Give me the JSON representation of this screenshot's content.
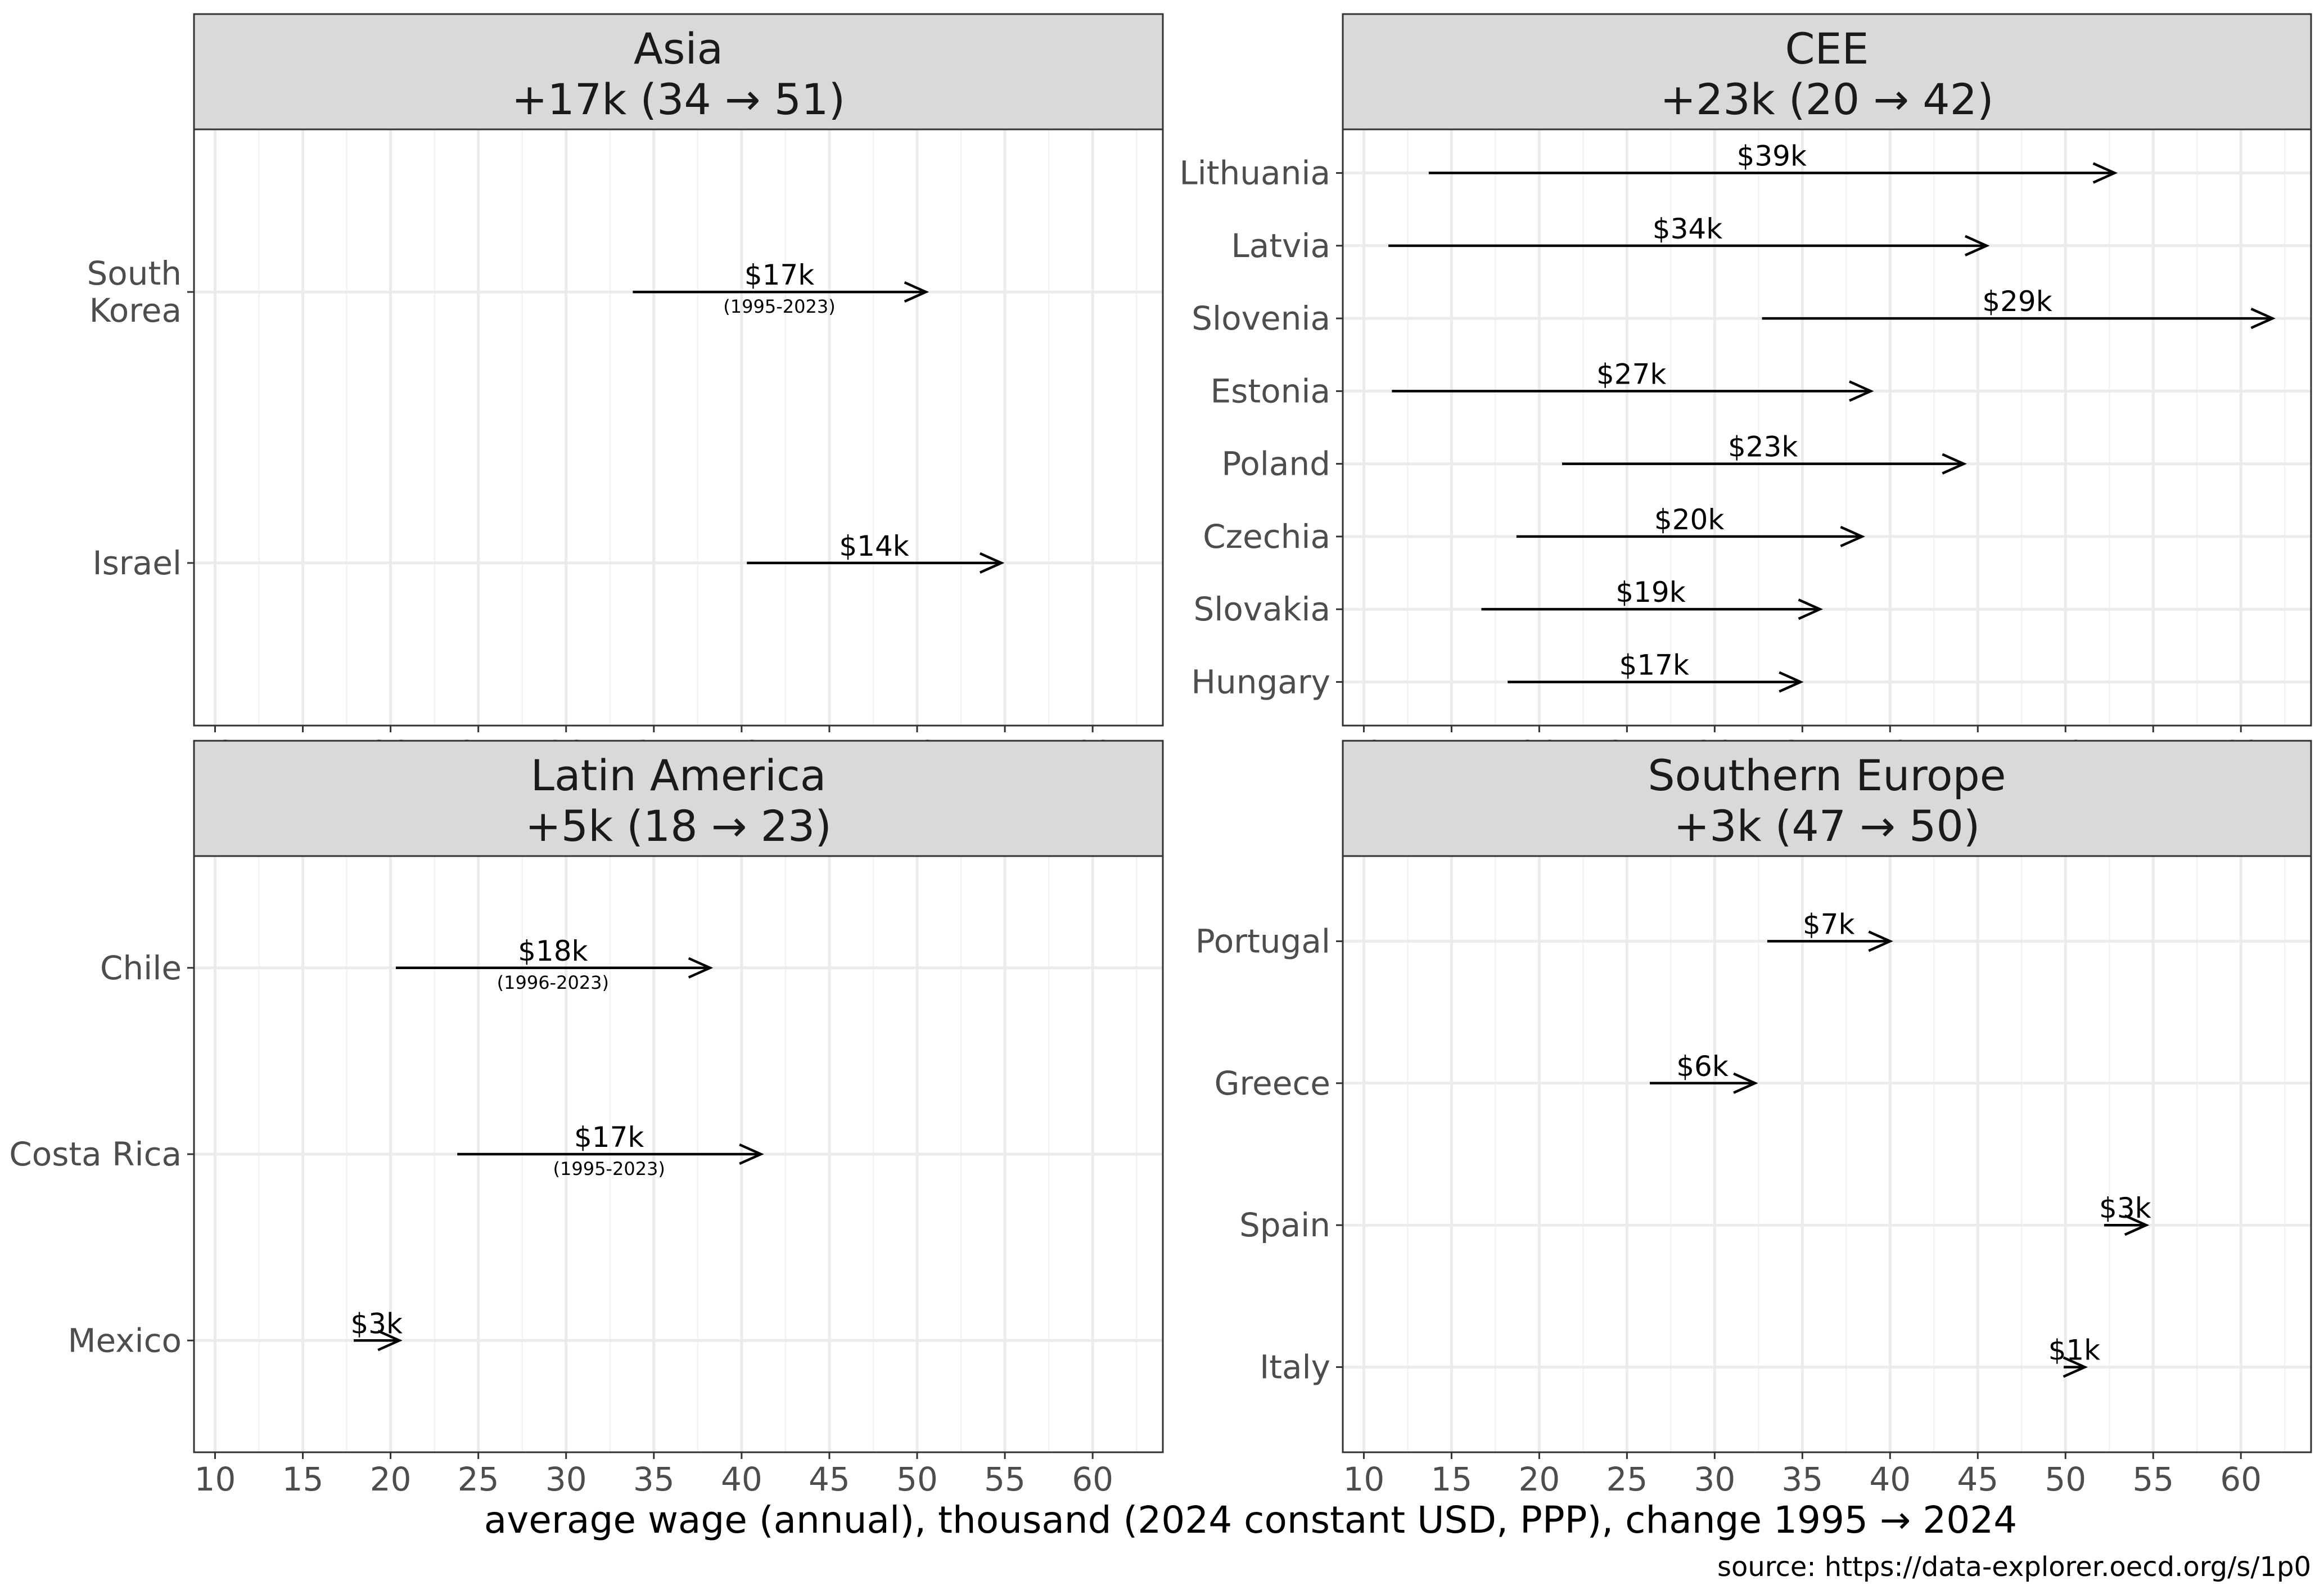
{
  "chart_data": {
    "type": "arrow-range",
    "xlabel": "average wage (annual), thousand (2024 constant USD, PPP), change 1995 → 2024",
    "caption": "source: https://data-explorer.oecd.org/s/1p0",
    "xlim": [
      8.8,
      64
    ],
    "xticks": [
      10,
      15,
      20,
      25,
      30,
      35,
      40,
      45,
      50,
      55,
      60
    ],
    "xtick_labels": [
      "10",
      "15",
      "20",
      "25",
      "30",
      "35",
      "40",
      "45",
      "50",
      "55",
      "60"
    ],
    "panels": [
      {
        "title_line1": "Asia",
        "title_line2": "+17k (34 → 51)",
        "rows": [
          {
            "label": [
              "South",
              "Korea"
            ],
            "start": 33.8,
            "end": 50.5,
            "delta_label": "$17k",
            "period": "(1995-2023)"
          },
          {
            "label": [
              "Israel"
            ],
            "start": 40.3,
            "end": 54.8,
            "delta_label": "$14k",
            "period": ""
          }
        ]
      },
      {
        "title_line1": "CEE",
        "title_line2": "+23k (20 → 42)",
        "rows": [
          {
            "label": [
              "Lithuania"
            ],
            "start": 13.7,
            "end": 52.8,
            "delta_label": "$39k",
            "period": ""
          },
          {
            "label": [
              "Latvia"
            ],
            "start": 11.4,
            "end": 45.5,
            "delta_label": "$34k",
            "period": ""
          },
          {
            "label": [
              "Slovenia"
            ],
            "start": 32.7,
            "end": 61.8,
            "delta_label": "$29k",
            "period": ""
          },
          {
            "label": [
              "Estonia"
            ],
            "start": 11.6,
            "end": 38.9,
            "delta_label": "$27k",
            "period": ""
          },
          {
            "label": [
              "Poland"
            ],
            "start": 21.3,
            "end": 44.2,
            "delta_label": "$23k",
            "period": ""
          },
          {
            "label": [
              "Czechia"
            ],
            "start": 18.7,
            "end": 38.4,
            "delta_label": "$20k",
            "period": ""
          },
          {
            "label": [
              "Slovakia"
            ],
            "start": 16.7,
            "end": 36.0,
            "delta_label": "$19k",
            "period": ""
          },
          {
            "label": [
              "Hungary"
            ],
            "start": 18.2,
            "end": 34.9,
            "delta_label": "$17k",
            "period": ""
          }
        ]
      },
      {
        "title_line1": "Latin America",
        "title_line2": "+5k (18 → 23)",
        "rows": [
          {
            "label": [
              "Chile"
            ],
            "start": 20.3,
            "end": 38.2,
            "delta_label": "$18k",
            "period": "(1996-2023)"
          },
          {
            "label": [
              "Costa Rica"
            ],
            "start": 23.8,
            "end": 41.1,
            "delta_label": "$17k",
            "period": "(1995-2023)"
          },
          {
            "label": [
              "Mexico"
            ],
            "start": 17.9,
            "end": 20.5,
            "delta_label": "$3k",
            "period": ""
          }
        ]
      },
      {
        "title_line1": "Southern Europe",
        "title_line2": "+3k (47 → 50)",
        "rows": [
          {
            "label": [
              "Portugal"
            ],
            "start": 33.0,
            "end": 40.0,
            "delta_label": "$7k",
            "period": ""
          },
          {
            "label": [
              "Greece"
            ],
            "start": 26.3,
            "end": 32.3,
            "delta_label": "$6k",
            "period": ""
          },
          {
            "label": [
              "Spain"
            ],
            "start": 52.2,
            "end": 54.6,
            "delta_label": "$3k",
            "period": ""
          },
          {
            "label": [
              "Italy"
            ],
            "start": 49.9,
            "end": 51.1,
            "delta_label": "$1k",
            "period": ""
          }
        ]
      }
    ]
  }
}
